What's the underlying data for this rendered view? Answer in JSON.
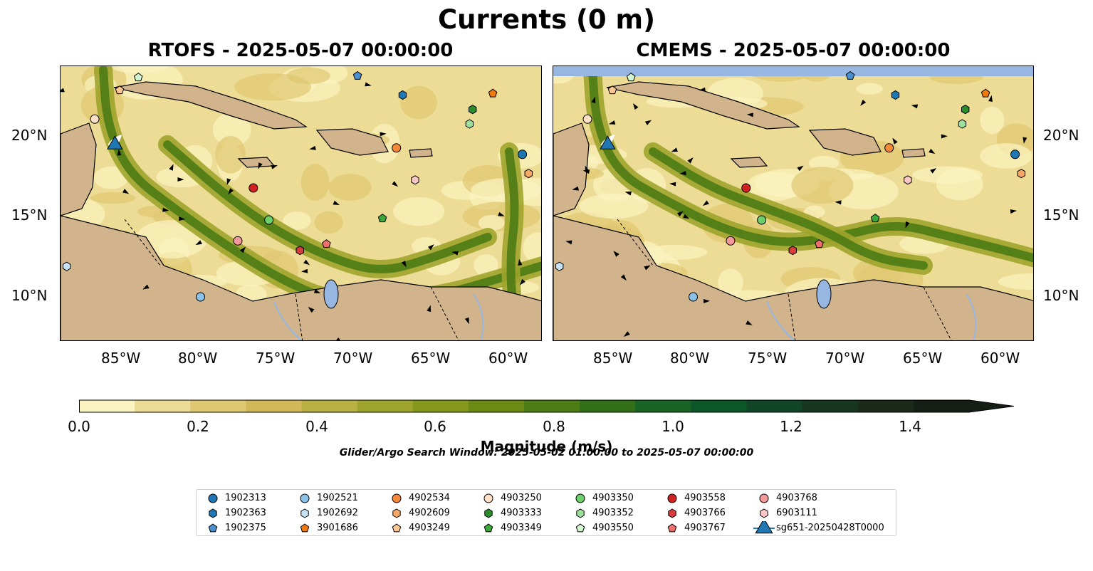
{
  "figure": {
    "title": "Currents (0 m)",
    "panels": [
      {
        "title": "RTOFS - 2025-05-07 00:00:00"
      },
      {
        "title": "CMEMS - 2025-05-07 00:00:00"
      }
    ],
    "lon_ticks": [
      "85°W",
      "80°W",
      "75°W",
      "70°W",
      "65°W",
      "60°W"
    ],
    "lat_ticks": [
      "20°N",
      "15°N",
      "10°N"
    ],
    "colorbar": {
      "label": "Magnitude (m/s)",
      "ticks": [
        "0.0",
        "0.2",
        "0.4",
        "0.6",
        "0.8",
        "1.0",
        "1.2",
        "1.4"
      ],
      "colors": [
        "#fbf3c0",
        "#eddc95",
        "#dfc872",
        "#d1b858",
        "#b9b042",
        "#9fa42c",
        "#85981c",
        "#6a8a14",
        "#4d7b14",
        "#317018",
        "#176424",
        "#0c5628",
        "#104626",
        "#173620",
        "#1a2b1a",
        "#141e14"
      ]
    },
    "search_window": "Glider/Argo Search Window: 2025-05-02 01:00:00 to 2025-05-07 00:00:00"
  },
  "colors": {
    "land": "#d2b48c",
    "lake": "#97b6e1",
    "river": "#97b6e1",
    "stream": "#000000"
  },
  "legend": [
    {
      "label": "1902313",
      "marker": "circle",
      "color": "#1f77b4"
    },
    {
      "label": "1902363",
      "marker": "hexagon",
      "color": "#1f77b4"
    },
    {
      "label": "1902375",
      "marker": "pentagon",
      "color": "#4a90d0"
    },
    {
      "label": "1902521",
      "marker": "circle",
      "color": "#8cc2ea"
    },
    {
      "label": "1902692",
      "marker": "hexagon",
      "color": "#c6e2f7"
    },
    {
      "label": "3901686",
      "marker": "pentagon",
      "color": "#f07a10"
    },
    {
      "label": "4902534",
      "marker": "circle",
      "color": "#f5893a"
    },
    {
      "label": "4902609",
      "marker": "hexagon",
      "color": "#f8a866"
    },
    {
      "label": "4903249",
      "marker": "pentagon",
      "color": "#fcc896"
    },
    {
      "label": "4903250",
      "marker": "circle",
      "color": "#fde0c8"
    },
    {
      "label": "4903333",
      "marker": "hexagon",
      "color": "#2a8c2a"
    },
    {
      "label": "4903349",
      "marker": "pentagon",
      "color": "#3ca83c"
    },
    {
      "label": "4903350",
      "marker": "circle",
      "color": "#6ccf6c"
    },
    {
      "label": "4903352",
      "marker": "hexagon",
      "color": "#9de09d"
    },
    {
      "label": "4903550",
      "marker": "pentagon",
      "color": "#d2f5d2"
    },
    {
      "label": "4903558",
      "marker": "circle",
      "color": "#d21f1f"
    },
    {
      "label": "4903766",
      "marker": "hexagon",
      "color": "#d83c3c"
    },
    {
      "label": "4903767",
      "marker": "pentagon",
      "color": "#ef6f6f"
    },
    {
      "label": "4903768",
      "marker": "circle",
      "color": "#f59a9a"
    },
    {
      "label": "6903111",
      "marker": "hexagon",
      "color": "#fbc6c6"
    },
    {
      "label": "sg651-20250428T0000",
      "marker": "triangle",
      "color": "#1f77b4"
    }
  ],
  "markers": [
    {
      "id": "1902313",
      "lon": -59.3,
      "lat": 18.8
    },
    {
      "id": "1902363",
      "lon": -67.0,
      "lat": 22.5
    },
    {
      "id": "1902375",
      "lon": -69.9,
      "lat": 23.7
    },
    {
      "id": "1902521",
      "lon": -80.0,
      "lat": 9.9
    },
    {
      "id": "1902692",
      "lon": -88.6,
      "lat": 11.8
    },
    {
      "id": "3901686",
      "lon": -61.2,
      "lat": 22.6
    },
    {
      "id": "4902534",
      "lon": -67.4,
      "lat": 19.2
    },
    {
      "id": "4902609",
      "lon": -58.9,
      "lat": 17.6
    },
    {
      "id": "4903249",
      "lon": -85.2,
      "lat": 22.8
    },
    {
      "id": "4903250",
      "lon": -86.8,
      "lat": 21.0
    },
    {
      "id": "4903333",
      "lon": -62.5,
      "lat": 21.6
    },
    {
      "id": "4903349",
      "lon": -68.3,
      "lat": 14.8
    },
    {
      "id": "4903350",
      "lon": -75.6,
      "lat": 14.7
    },
    {
      "id": "4903352",
      "lon": -62.7,
      "lat": 20.7
    },
    {
      "id": "4903550",
      "lon": -84.0,
      "lat": 23.6
    },
    {
      "id": "4903558",
      "lon": -76.6,
      "lat": 16.7
    },
    {
      "id": "4903766",
      "lon": -73.6,
      "lat": 12.8
    },
    {
      "id": "4903767",
      "lon": -71.9,
      "lat": 13.2
    },
    {
      "id": "4903768",
      "lon": -77.6,
      "lat": 13.4
    },
    {
      "id": "6903111",
      "lon": -66.2,
      "lat": 17.2
    },
    {
      "id": "sg651-20250428T0000",
      "lon": -85.5,
      "lat": 19.4
    }
  ]
}
